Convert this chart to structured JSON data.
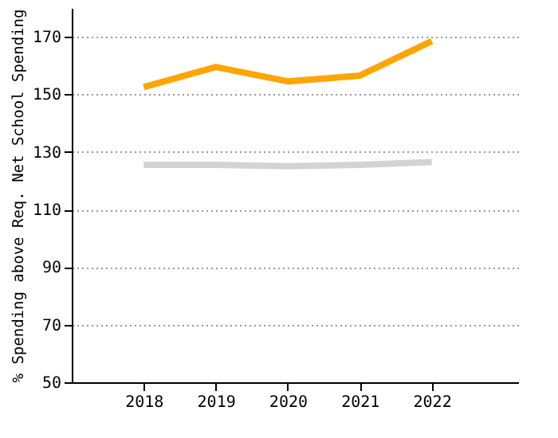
{
  "chart_data": {
    "type": "line",
    "ylabel": "% Spending above Req. Net School Spending",
    "x": [
      2018,
      2019,
      2020,
      2021,
      2022
    ],
    "xlim": [
      2017,
      2023.2
    ],
    "xticks": [
      2018,
      2019,
      2020,
      2021,
      2022
    ],
    "ylim": [
      50,
      180
    ],
    "yticks": [
      50,
      70,
      90,
      110,
      130,
      150,
      170
    ],
    "grid": "y",
    "marker": "none",
    "line_style": "solid",
    "series": [
      {
        "color": "#d3d3d3",
        "values": [
          125.5,
          125.5,
          125,
          125.5,
          126.5
        ]
      },
      {
        "color": "#ffa500",
        "values": [
          152.5,
          159.5,
          154.5,
          156.5,
          168.5
        ]
      }
    ]
  }
}
